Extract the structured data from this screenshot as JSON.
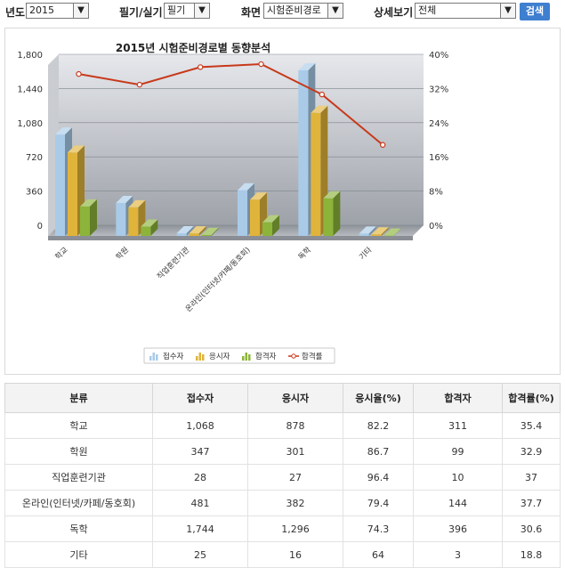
{
  "filters": {
    "year_label": "년도",
    "year_value": "2015",
    "exam_label": "필기/실기",
    "exam_value": "필기",
    "screen_label": "화면",
    "screen_value": "시험준비경로",
    "detail_label": "상세보기",
    "detail_value": "전체",
    "search_label": "검색"
  },
  "chart_data": {
    "type": "bar",
    "title": "2015년 시험준비경로별 동향분석",
    "categories": [
      "학교",
      "학원",
      "직업훈련기관",
      "온라인(인터넷/카페/동호회)",
      "독학",
      "기타"
    ],
    "series": [
      {
        "name": "접수자",
        "values": [
          1068,
          347,
          28,
          481,
          1744,
          25
        ],
        "color": "#a9cbe8"
      },
      {
        "name": "응시자",
        "values": [
          878,
          301,
          27,
          382,
          1296,
          16
        ],
        "color": "#e0b43a"
      },
      {
        "name": "합격자",
        "values": [
          311,
          99,
          10,
          144,
          396,
          3
        ],
        "color": "#8cb43a"
      }
    ],
    "line_series": {
      "name": "합격률",
      "values": [
        35.4,
        32.9,
        37,
        37.7,
        30.6,
        18.8
      ],
      "color": "#c8391b"
    },
    "yleft_ticks": [
      "1,800",
      "1,440",
      "1,080",
      "720",
      "360",
      "0"
    ],
    "yright_ticks": [
      "40%",
      "32%",
      "24%",
      "16%",
      "8%",
      "0%"
    ],
    "ylim_left": [
      0,
      1800
    ],
    "ylim_right": [
      0,
      40
    ],
    "legend": [
      "접수자",
      "응시자",
      "합격자",
      "합격률"
    ],
    "legend_position": "bottom"
  },
  "table": {
    "headers": [
      "분류",
      "접수자",
      "응시자",
      "응시율(%)",
      "합격자",
      "합격률(%)"
    ],
    "rows": [
      [
        "학교",
        "1,068",
        "878",
        "82.2",
        "311",
        "35.4"
      ],
      [
        "학원",
        "347",
        "301",
        "86.7",
        "99",
        "32.9"
      ],
      [
        "직업훈련기관",
        "28",
        "27",
        "96.4",
        "10",
        "37"
      ],
      [
        "온라인(인터넷/카페/동호회)",
        "481",
        "382",
        "79.4",
        "144",
        "37.7"
      ],
      [
        "독학",
        "1,744",
        "1,296",
        "74.3",
        "396",
        "30.6"
      ],
      [
        "기타",
        "25",
        "16",
        "64",
        "3",
        "18.8"
      ]
    ]
  }
}
